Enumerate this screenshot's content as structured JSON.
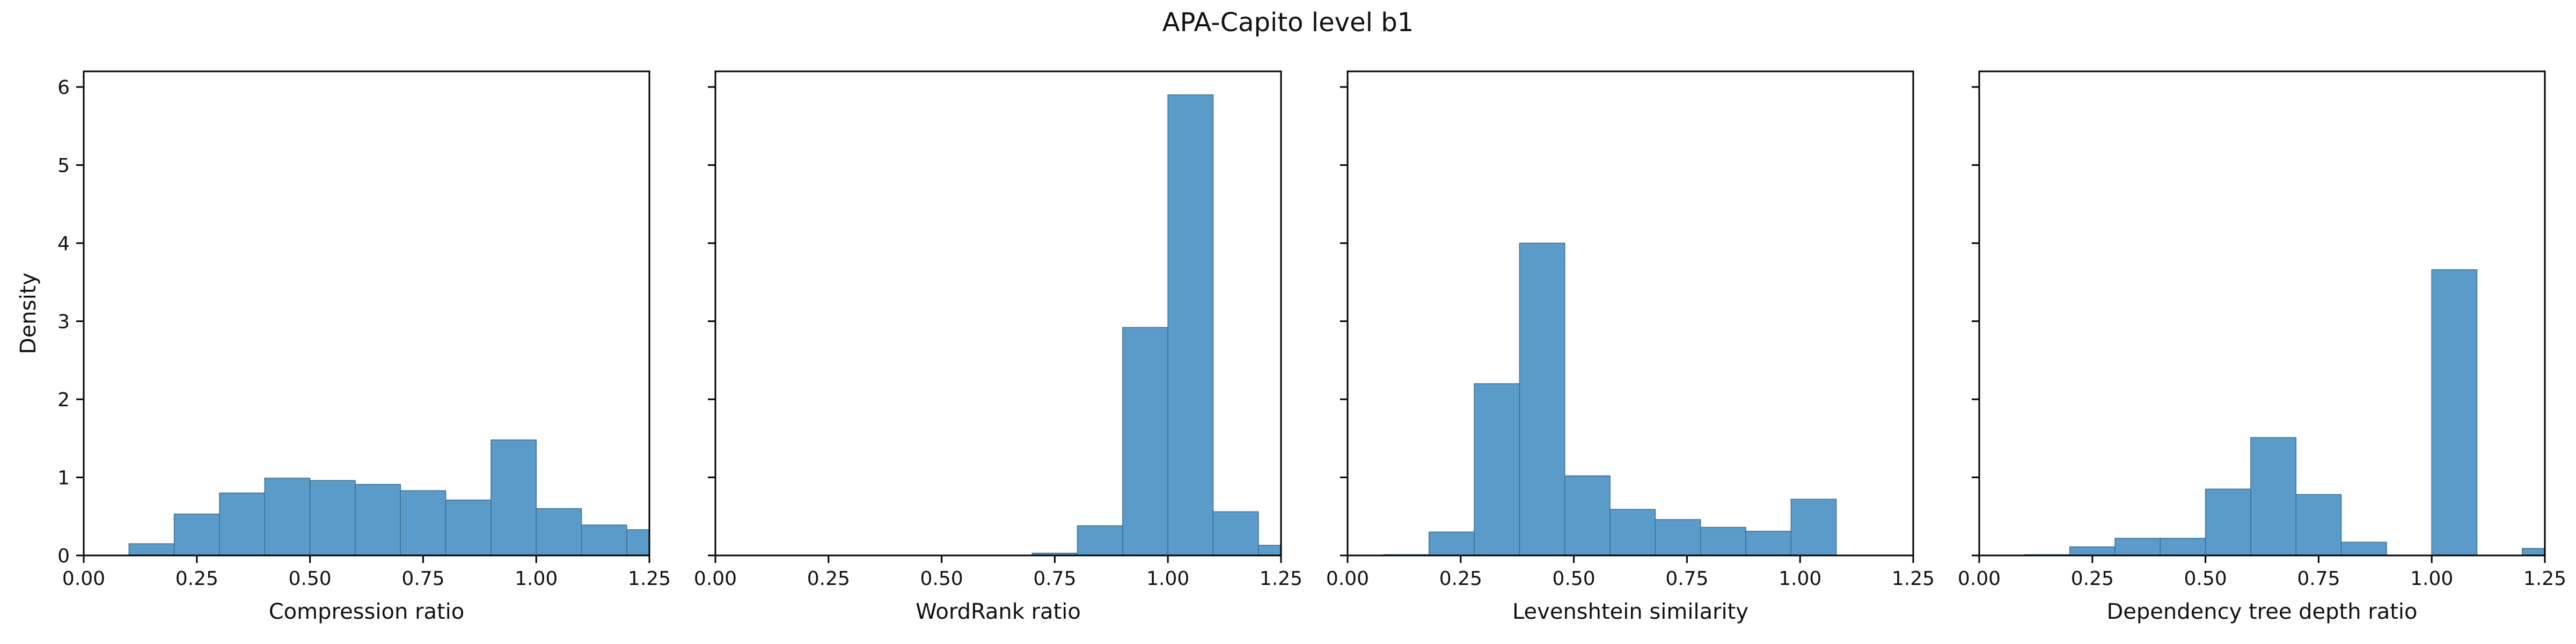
{
  "figure": {
    "title": "APA-Capito level b1"
  },
  "colors": {
    "bar_fill": "#5b9bc9",
    "bar_edge": "#3c6f93",
    "axis": "#000000"
  },
  "chart_data": [
    {
      "type": "bar",
      "xlabel": "Compression ratio",
      "ylabel": "Density",
      "xlim": [
        0,
        1.25
      ],
      "ylim": [
        0,
        6.2
      ],
      "xticks": [
        "0.00",
        "0.25",
        "0.50",
        "0.75",
        "1.00",
        "1.25"
      ],
      "yticks": [
        "0",
        "1",
        "2",
        "3",
        "4",
        "5",
        "6"
      ],
      "bins": [
        {
          "x0": 0.1,
          "x1": 0.2,
          "value": 0.15
        },
        {
          "x0": 0.2,
          "x1": 0.3,
          "value": 0.53
        },
        {
          "x0": 0.3,
          "x1": 0.4,
          "value": 0.8
        },
        {
          "x0": 0.4,
          "x1": 0.5,
          "value": 0.99
        },
        {
          "x0": 0.5,
          "x1": 0.6,
          "value": 0.96
        },
        {
          "x0": 0.6,
          "x1": 0.7,
          "value": 0.91
        },
        {
          "x0": 0.7,
          "x1": 0.8,
          "value": 0.83
        },
        {
          "x0": 0.8,
          "x1": 0.9,
          "value": 0.71
        },
        {
          "x0": 0.9,
          "x1": 1.0,
          "value": 1.48
        },
        {
          "x0": 1.0,
          "x1": 1.1,
          "value": 0.6
        },
        {
          "x0": 1.1,
          "x1": 1.2,
          "value": 0.39
        },
        {
          "x0": 1.2,
          "x1": 1.3,
          "value": 0.33
        }
      ]
    },
    {
      "type": "bar",
      "xlabel": "WordRank ratio",
      "ylabel": "",
      "xlim": [
        0,
        1.25
      ],
      "ylim": [
        0,
        6.2
      ],
      "xticks": [
        "0.00",
        "0.25",
        "0.50",
        "0.75",
        "1.00",
        "1.25"
      ],
      "yticks": [],
      "bins": [
        {
          "x0": 0.7,
          "x1": 0.8,
          "value": 0.03
        },
        {
          "x0": 0.8,
          "x1": 0.9,
          "value": 0.38
        },
        {
          "x0": 0.9,
          "x1": 1.0,
          "value": 2.92
        },
        {
          "x0": 1.0,
          "x1": 1.1,
          "value": 5.9
        },
        {
          "x0": 1.1,
          "x1": 1.2,
          "value": 0.56
        },
        {
          "x0": 1.2,
          "x1": 1.3,
          "value": 0.13
        }
      ]
    },
    {
      "type": "bar",
      "xlabel": "Levenshtein similarity",
      "ylabel": "",
      "xlim": [
        0,
        1.25
      ],
      "ylim": [
        0,
        6.2
      ],
      "xticks": [
        "0.00",
        "0.25",
        "0.50",
        "0.75",
        "1.00",
        "1.25"
      ],
      "yticks": [],
      "bins": [
        {
          "x0": 0.08,
          "x1": 0.18,
          "value": 0.01
        },
        {
          "x0": 0.18,
          "x1": 0.28,
          "value": 0.3
        },
        {
          "x0": 0.28,
          "x1": 0.38,
          "value": 2.2
        },
        {
          "x0": 0.38,
          "x1": 0.48,
          "value": 4.0
        },
        {
          "x0": 0.48,
          "x1": 0.58,
          "value": 1.02
        },
        {
          "x0": 0.58,
          "x1": 0.68,
          "value": 0.59
        },
        {
          "x0": 0.68,
          "x1": 0.78,
          "value": 0.46
        },
        {
          "x0": 0.78,
          "x1": 0.88,
          "value": 0.36
        },
        {
          "x0": 0.88,
          "x1": 0.98,
          "value": 0.31
        },
        {
          "x0": 0.98,
          "x1": 1.08,
          "value": 0.72
        }
      ]
    },
    {
      "type": "bar",
      "xlabel": "Dependency tree depth ratio",
      "ylabel": "",
      "xlim": [
        0,
        1.25
      ],
      "ylim": [
        0,
        6.2
      ],
      "xticks": [
        "0.00",
        "0.25",
        "0.50",
        "0.75",
        "1.00",
        "1.25"
      ],
      "yticks": [],
      "bins": [
        {
          "x0": 0.1,
          "x1": 0.2,
          "value": 0.01
        },
        {
          "x0": 0.2,
          "x1": 0.3,
          "value": 0.11
        },
        {
          "x0": 0.3,
          "x1": 0.4,
          "value": 0.22
        },
        {
          "x0": 0.4,
          "x1": 0.5,
          "value": 0.22
        },
        {
          "x0": 0.5,
          "x1": 0.6,
          "value": 0.85
        },
        {
          "x0": 0.6,
          "x1": 0.7,
          "value": 1.51
        },
        {
          "x0": 0.7,
          "x1": 0.8,
          "value": 0.78
        },
        {
          "x0": 0.8,
          "x1": 0.9,
          "value": 0.17
        },
        {
          "x0": 1.0,
          "x1": 1.1,
          "value": 3.66
        },
        {
          "x0": 1.2,
          "x1": 1.3,
          "value": 0.09
        }
      ]
    }
  ]
}
